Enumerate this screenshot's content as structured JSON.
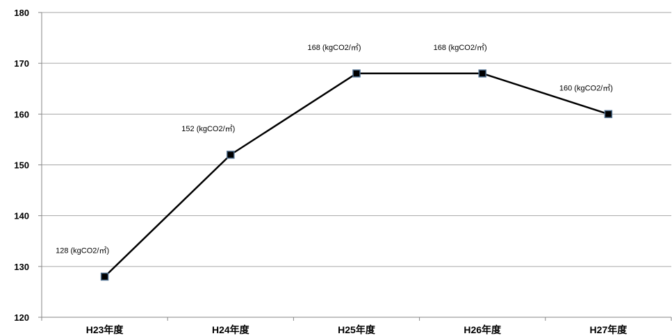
{
  "chart_data": {
    "type": "line",
    "categories": [
      "H23年度",
      "H24年度",
      "H25年度",
      "H26年度",
      "H27年度"
    ],
    "series": [
      {
        "values": [
          128,
          152,
          168,
          168,
          160
        ],
        "data_labels": [
          "128 (kgCO2/㎡)",
          "152 (kgCO2/㎡)",
          "168 (kgCO2/㎡)",
          "168 (kgCO2/㎡)",
          "160 (kgCO2/㎡)"
        ]
      }
    ],
    "title": "",
    "xlabel": "",
    "ylabel": "",
    "ylim": [
      120,
      180
    ],
    "yticks": [
      "120",
      "130",
      "140",
      "150",
      "160",
      "170",
      "180"
    ],
    "grid": true,
    "legend": "none",
    "colors": {
      "line": "#000000",
      "marker_fill": "#000000",
      "marker_edge": "#4f6f8f",
      "grid": "#a6a6a6",
      "axis": "#868686"
    }
  }
}
